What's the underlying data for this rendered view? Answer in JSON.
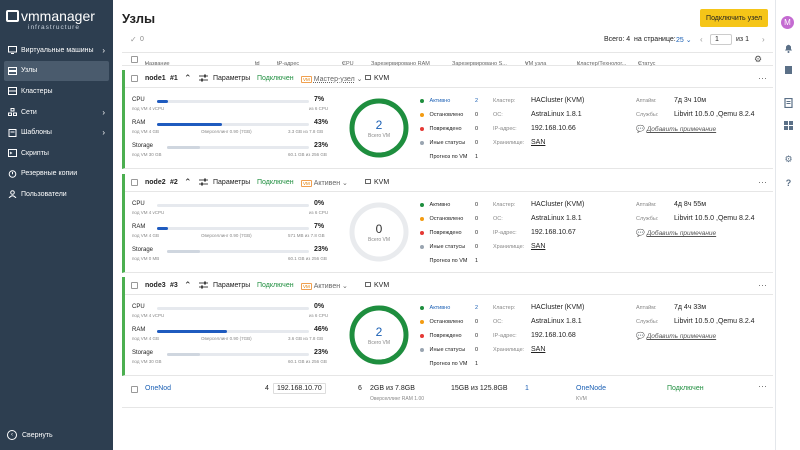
{
  "app": {
    "logo_main": "vmmanager",
    "logo_sub": "infrastructure"
  },
  "sidebar": {
    "items": [
      {
        "label": "Виртуальные машины",
        "icon": "monitor-icon",
        "chevron": true
      },
      {
        "label": "Узлы",
        "icon": "node-icon",
        "active": true
      },
      {
        "label": "Кластеры",
        "icon": "cluster-icon"
      },
      {
        "label": "Сети",
        "icon": "network-icon",
        "chevron": true
      },
      {
        "label": "Шаблоны",
        "icon": "template-icon",
        "chevron": true
      },
      {
        "label": "Скрипты",
        "icon": "script-icon"
      },
      {
        "label": "Резервные копии",
        "icon": "backup-icon"
      },
      {
        "label": "Пользователи",
        "icon": "users-icon"
      }
    ],
    "collapse_label": "Свернуть"
  },
  "header": {
    "title": "Узлы",
    "connect_button": "Подключить узел",
    "avatar_letter": "M"
  },
  "toolbar": {
    "selected_count": "0",
    "total_label": "Всего: 4",
    "per_page_label": "на странице:",
    "per_page_value": "25",
    "page_value": "1",
    "page_of": "из 1"
  },
  "table_header": {
    "name": "Название",
    "id": "Id",
    "ip": "IP-адрес",
    "cpu": "CPU",
    "ram": "Зарезервировано RAM",
    "storage": "Зарезервировано S...",
    "vm": "VM узла",
    "cluster": "Кластер/Технолог...",
    "status": "Статус"
  },
  "nodes": [
    {
      "name": "node1",
      "num": "#1",
      "params": "Параметры",
      "status": "Подключен",
      "mode": "Мастер-узел",
      "virt": "KVM",
      "cpu": {
        "label": "CPU",
        "pct": "7%",
        "sub_left": "под VM 4 vCPU",
        "sub_right": "из 6 CPU",
        "fill": 0.07
      },
      "ram": {
        "label": "RAM",
        "pct": "43%",
        "sub_left": "под VM 4 GB",
        "sub_mid": "Оверселлинг 0.90 (7GB)",
        "sub_right": "3.3 GB из 7.8 GB",
        "fill": 0.43
      },
      "storage": {
        "label": "Storage",
        "pct": "23%",
        "sub_left": "под VM 30 GB",
        "sub_right": "60.1 GB из 256 GB",
        "fill": 0.23
      },
      "ring_num": "2",
      "ring_sub": "Всего VM",
      "ring_active_fraction": 1.0,
      "legend": [
        {
          "label": "Активно",
          "value": "2",
          "color": "#1e8e3e",
          "highlight": true
        },
        {
          "label": "Остановлено",
          "value": "0",
          "color": "#f39c12"
        },
        {
          "label": "Повреждено",
          "value": "0",
          "color": "#e53935"
        },
        {
          "label": "Иные статусы",
          "value": "0",
          "color": "#9aa5b1"
        },
        {
          "label": "Прогноз по VM",
          "value": "1",
          "color": ""
        }
      ],
      "cluster_k": "Кластер:",
      "cluster_v": "HACluster",
      "cluster_t": "(KVM)",
      "os_k": "ОС:",
      "os_v": "AstraLinux 1.8.1",
      "ip_k": "IP-адрес:",
      "ip_v": "192.168.10.66",
      "store_k": "Хранилище:",
      "store_v": "SAN",
      "uptime_k": "Аптайм:",
      "uptime_v": "7д 3ч 10м",
      "svc_k": "Службы:",
      "svc_v": "Libvirt 10.5.0 ,Qemu 8.2.4",
      "note": "Добавить примечание"
    },
    {
      "name": "node2",
      "num": "#2",
      "params": "Параметры",
      "status": "Подключен",
      "mode": "Активен",
      "virt": "KVM",
      "cpu": {
        "label": "CPU",
        "pct": "0%",
        "sub_left": "под VM 4 vCPU",
        "sub_right": "из 6 CPU",
        "fill": 0.0
      },
      "ram": {
        "label": "RAM",
        "pct": "7%",
        "sub_left": "под VM 4 GB",
        "sub_mid": "Оверселлинг 0.90 (7GB)",
        "sub_right": "571 MB из 7.8 GB",
        "fill": 0.07
      },
      "storage": {
        "label": "Storage",
        "pct": "23%",
        "sub_left": "под VM 0 MB",
        "sub_right": "60.1 GB из 256 GB",
        "fill": 0.23
      },
      "ring_num": "0",
      "ring_sub": "Всего VM",
      "ring_active_fraction": 0.0,
      "legend": [
        {
          "label": "Активно",
          "value": "0",
          "color": "#1e8e3e"
        },
        {
          "label": "Остановлено",
          "value": "0",
          "color": "#f39c12"
        },
        {
          "label": "Повреждено",
          "value": "0",
          "color": "#e53935"
        },
        {
          "label": "Иные статусы",
          "value": "0",
          "color": "#9aa5b1"
        },
        {
          "label": "Прогноз по VM",
          "value": "1",
          "color": ""
        }
      ],
      "cluster_k": "Кластер:",
      "cluster_v": "HACluster",
      "cluster_t": "(KVM)",
      "os_k": "ОС:",
      "os_v": "AstraLinux 1.8.1",
      "ip_k": "IP-адрес:",
      "ip_v": "192.168.10.67",
      "store_k": "Хранилище:",
      "store_v": "SAN",
      "uptime_k": "Аптайм:",
      "uptime_v": "4д 8ч 55м",
      "svc_k": "Службы:",
      "svc_v": "Libvirt 10.5.0 ,Qemu 8.2.4",
      "note": "Добавить примечание"
    },
    {
      "name": "node3",
      "num": "#3",
      "params": "Параметры",
      "status": "Подключен",
      "mode": "Активен",
      "virt": "KVM",
      "cpu": {
        "label": "CPU",
        "pct": "0%",
        "sub_left": "под VM 4 vCPU",
        "sub_right": "из 6 CPU",
        "fill": 0.0
      },
      "ram": {
        "label": "RAM",
        "pct": "46%",
        "sub_left": "под VM 4 GB",
        "sub_mid": "Оверселлинг 0.90 (7GB)",
        "sub_right": "3.6 GB из 7.8 GB",
        "fill": 0.46
      },
      "storage": {
        "label": "Storage",
        "pct": "23%",
        "sub_left": "под VM 30 GB",
        "sub_right": "60.1 GB из 256 GB",
        "fill": 0.23
      },
      "ring_num": "2",
      "ring_sub": "Всего VM",
      "ring_active_fraction": 1.0,
      "legend": [
        {
          "label": "Активно",
          "value": "2",
          "color": "#1e8e3e",
          "highlight": true
        },
        {
          "label": "Остановлено",
          "value": "0",
          "color": "#f39c12"
        },
        {
          "label": "Повреждено",
          "value": "0",
          "color": "#e53935"
        },
        {
          "label": "Иные статусы",
          "value": "0",
          "color": "#9aa5b1"
        },
        {
          "label": "Прогноз по VM",
          "value": "1",
          "color": ""
        }
      ],
      "cluster_k": "Кластер:",
      "cluster_v": "HACluster",
      "cluster_t": "(KVM)",
      "os_k": "ОС:",
      "os_v": "AstraLinux 1.8.1",
      "ip_k": "IP-адрес:",
      "ip_v": "192.168.10.68",
      "store_k": "Хранилище:",
      "store_v": "SAN",
      "uptime_k": "Аптайм:",
      "uptime_v": "7д 4ч 33м",
      "svc_k": "Службы:",
      "svc_v": "Libvirt 10.5.0 ,Qemu 8.2.4",
      "note": "Добавить примечание"
    }
  ],
  "onenod": {
    "name": "OneNod",
    "id": "4",
    "ip": "192.168.10.70",
    "cpu": "6",
    "ram": "2GB из 7.8GB",
    "ram_sub": "Оверселлинг RAM 1.00",
    "storage": "15GB из 125.8GB",
    "vm": "1",
    "cluster": "OneNode",
    "cluster_sub": "KVM",
    "status": "Подключен"
  },
  "colors": {
    "sidebar": "#2d3e50",
    "accent": "#f5c518",
    "active": "#1e8e3e",
    "link": "#1a5fb4"
  }
}
